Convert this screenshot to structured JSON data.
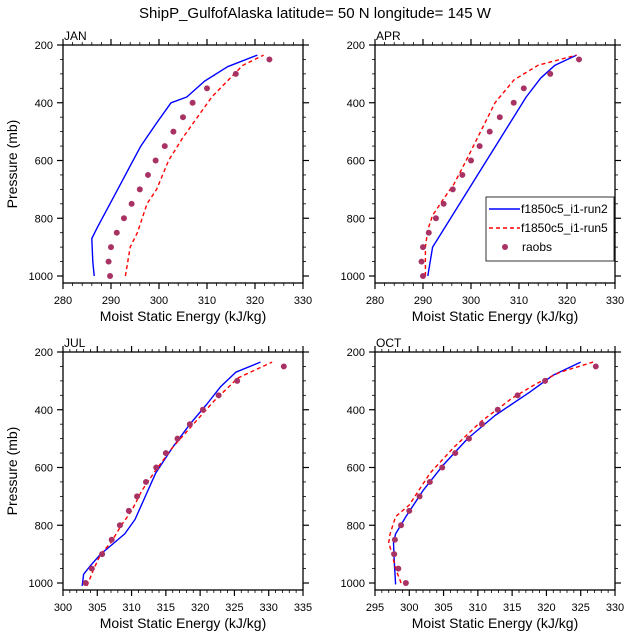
{
  "figure": {
    "title": "ShipP_GulfofAlaska  latitude= 50 N longitude= 145 W"
  },
  "legend": {
    "placement": "right-middle of APR panel",
    "entries": [
      {
        "label": "f1850c5_i1-run2",
        "style": "solid",
        "color": "#0000ff"
      },
      {
        "label": "f1850c5_i1-run5",
        "style": "dashed",
        "color": "#ff0000"
      },
      {
        "label": "raobs",
        "style": "marker",
        "color": "#a83264"
      }
    ]
  },
  "chart_data": [
    {
      "type": "line",
      "title": "JAN",
      "xlabel": "Moist Static Energy (kJ/kg)",
      "ylabel": "Pressure (mb)",
      "xlim": [
        280,
        330
      ],
      "ylim": [
        1000,
        200
      ],
      "xticks": [
        "280",
        "290",
        "300",
        "310",
        "320",
        "330"
      ],
      "yticks": [
        "200",
        "400",
        "600",
        "800",
        "1000"
      ],
      "grid": false,
      "series": [
        {
          "name": "f1850c5_i1-run2",
          "x": [
            286.5,
            286.2,
            286.0,
            287.2,
            289.8,
            293.0,
            296.2,
            299.5,
            302.5,
            305.8,
            309.5,
            314.3,
            320.5
          ],
          "y": [
            1000,
            950,
            870,
            830,
            750,
            650,
            550,
            470,
            400,
            380,
            325,
            275,
            235
          ]
        },
        {
          "name": "f1850c5_i1-run5",
          "x": [
            293.0,
            294.0,
            295.5,
            297.5,
            299.5,
            302.0,
            305.0,
            308.0,
            311.0,
            314.5,
            317.5,
            321.8
          ],
          "y": [
            1000,
            900,
            850,
            750,
            700,
            600,
            520,
            450,
            380,
            320,
            270,
            235
          ]
        },
        {
          "name": "raobs",
          "x": [
            289.8,
            289.5,
            290.0,
            291.2,
            292.7,
            294.3,
            296.0,
            297.7,
            299.3,
            301.2,
            303.0,
            305.0,
            307.0,
            310.0,
            316.0,
            323.0
          ],
          "y": [
            1000,
            950,
            900,
            850,
            800,
            750,
            700,
            650,
            600,
            550,
            500,
            450,
            400,
            350,
            300,
            250
          ]
        }
      ]
    },
    {
      "type": "line",
      "title": "APR",
      "xlabel": "Moist Static Energy (kJ/kg)",
      "ylabel": "",
      "xlim": [
        280,
        330
      ],
      "ylim": [
        1000,
        200
      ],
      "xticks": [
        "280",
        "290",
        "300",
        "310",
        "320",
        "330"
      ],
      "yticks": [
        "200",
        "400",
        "600",
        "800",
        "1000"
      ],
      "grid": false,
      "series": [
        {
          "name": "f1850c5_i1-run2",
          "x": [
            291.0,
            292.0,
            293.5,
            296.5,
            299.5,
            302.5,
            305.5,
            308.5,
            311.5,
            314.5,
            317.5,
            322.0
          ],
          "y": [
            1000,
            900,
            860,
            780,
            700,
            620,
            540,
            460,
            380,
            315,
            270,
            235
          ]
        },
        {
          "name": "f1850c5_i1-run5",
          "x": [
            290.5,
            290.5,
            291.0,
            292.0,
            294.0,
            296.5,
            299.0,
            302.0,
            305.0,
            309.0,
            314.0,
            322.0
          ],
          "y": [
            1000,
            900,
            840,
            790,
            740,
            680,
            600,
            500,
            400,
            320,
            270,
            235
          ]
        },
        {
          "name": "raobs",
          "x": [
            290.0,
            289.7,
            290.0,
            291.2,
            292.7,
            294.3,
            296.2,
            298.2,
            300.0,
            301.8,
            303.9,
            306.0,
            308.9,
            311.0,
            316.5,
            322.5
          ],
          "y": [
            1000,
            950,
            900,
            850,
            800,
            750,
            700,
            650,
            600,
            550,
            500,
            450,
            400,
            350,
            300,
            250
          ]
        }
      ]
    },
    {
      "type": "line",
      "title": "JUL",
      "xlabel": "Moist Static Energy (kJ/kg)",
      "ylabel": "Pressure (mb)",
      "xlim": [
        300,
        335
      ],
      "ylim": [
        1000,
        200
      ],
      "xticks": [
        "300",
        "305",
        "310",
        "315",
        "320",
        "325",
        "330",
        "335"
      ],
      "yticks": [
        "200",
        "400",
        "600",
        "800",
        "1000"
      ],
      "grid": false,
      "series": [
        {
          "name": "f1850c5_i1-run2",
          "x": [
            302.8,
            303.0,
            304.0,
            305.5,
            307.0,
            309.0,
            310.5,
            312.0,
            313.5,
            316.0,
            318.5,
            321.0,
            323.0,
            325.2,
            328.8
          ],
          "y": [
            1010,
            970,
            940,
            900,
            870,
            830,
            780,
            700,
            620,
            530,
            450,
            380,
            320,
            270,
            235
          ]
        },
        {
          "name": "f1850c5_i1-run5",
          "x": [
            303.5,
            304.5,
            305.5,
            307.0,
            308.5,
            310.0,
            311.5,
            313.5,
            316.0,
            319.0,
            322.0,
            325.5,
            330.5
          ],
          "y": [
            1010,
            950,
            900,
            860,
            800,
            750,
            680,
            610,
            530,
            450,
            370,
            290,
            235
          ]
        },
        {
          "name": "raobs",
          "x": [
            303.3,
            304.2,
            305.7,
            307.1,
            308.3,
            309.6,
            310.8,
            312.1,
            313.6,
            315.0,
            316.7,
            318.5,
            320.4,
            322.7,
            325.4,
            332.2
          ],
          "y": [
            1000,
            950,
            900,
            850,
            800,
            750,
            700,
            650,
            600,
            550,
            500,
            450,
            400,
            350,
            300,
            250
          ]
        }
      ]
    },
    {
      "type": "line",
      "title": "OCT",
      "xlabel": "Moist Static Energy (kJ/kg)",
      "ylabel": "",
      "xlim": [
        295,
        330
      ],
      "ylim": [
        1000,
        200
      ],
      "xticks": [
        "295",
        "300",
        "305",
        "310",
        "315",
        "320",
        "325",
        "330"
      ],
      "yticks": [
        "200",
        "400",
        "600",
        "800",
        "1000"
      ],
      "grid": false,
      "series": [
        {
          "name": "f1850c5_i1-run2",
          "x": [
            298.0,
            297.8,
            297.7,
            298.0,
            299.5,
            302.0,
            305.0,
            308.5,
            312.5,
            317.5,
            321.0,
            325.0
          ],
          "y": [
            1005,
            920,
            860,
            830,
            770,
            680,
            590,
            500,
            420,
            340,
            280,
            235
          ]
        },
        {
          "name": "f1850c5_i1-run5",
          "x": [
            298.8,
            298.0,
            297.5,
            297.0,
            297.2,
            298.0,
            300.0,
            303.0,
            306.5,
            310.5,
            315.0,
            318.5,
            322.0,
            326.8
          ],
          "y": [
            1000,
            950,
            900,
            860,
            830,
            770,
            730,
            620,
            530,
            440,
            360,
            310,
            270,
            235
          ]
        },
        {
          "name": "raobs",
          "x": [
            299.5,
            298.4,
            297.8,
            297.9,
            298.8,
            300.0,
            301.5,
            303.0,
            304.8,
            306.7,
            308.7,
            310.6,
            312.9,
            315.8,
            319.8,
            327.2
          ],
          "y": [
            1000,
            950,
            900,
            850,
            800,
            750,
            700,
            650,
            600,
            550,
            500,
            450,
            400,
            350,
            300,
            250
          ]
        }
      ]
    }
  ]
}
